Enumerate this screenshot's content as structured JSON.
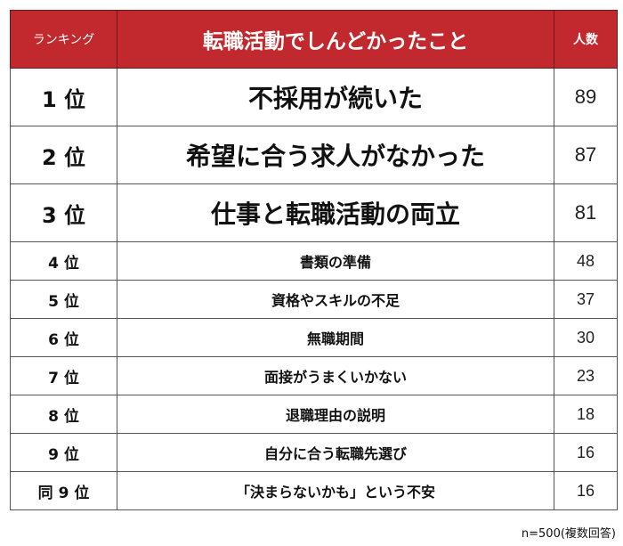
{
  "header": {
    "rank_label": "ランキング",
    "title": "転職活動でしんどかったこと",
    "count_label": "人数"
  },
  "colors": {
    "header_bg": "#c1292e",
    "header_text": "#ffffff",
    "border": "#555555"
  },
  "rows": [
    {
      "rank": "1 位",
      "item": "不採用が続いた",
      "count": "89"
    },
    {
      "rank": "2 位",
      "item": "希望に合う求人がなかった",
      "count": "87"
    },
    {
      "rank": "3 位",
      "item": "仕事と転職活動の両立",
      "count": "81"
    },
    {
      "rank": "4 位",
      "item": "書類の準備",
      "count": "48"
    },
    {
      "rank": "5 位",
      "item": "資格やスキルの不足",
      "count": "37"
    },
    {
      "rank": "6 位",
      "item": "無職期間",
      "count": "30"
    },
    {
      "rank": "7 位",
      "item": "面接がうまくいかない",
      "count": "23"
    },
    {
      "rank": "8 位",
      "item": "退職理由の説明",
      "count": "18"
    },
    {
      "rank": "9 位",
      "item": "自分に合う転職先選び",
      "count": "16"
    },
    {
      "rank": "同 9 位",
      "item": "「決まらないかも」という不安",
      "count": "16"
    }
  ],
  "footnote": "n=500(複数回答)"
}
